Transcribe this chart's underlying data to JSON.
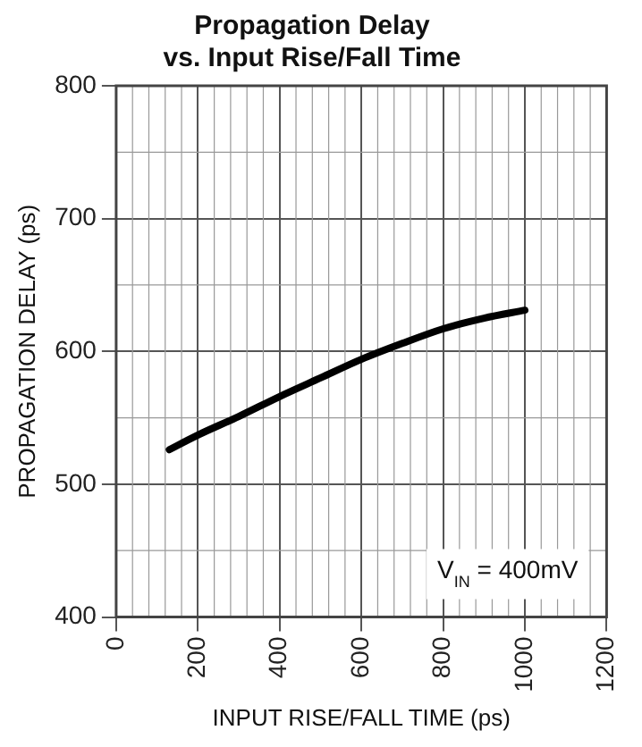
{
  "chart_data": {
    "type": "line",
    "title": "Propagation Delay\nvs. Input Rise/Fall Time",
    "xlabel": "INPUT RISE/FALL TIME (ps)",
    "ylabel": "PROPAGATION DELAY (ps)",
    "x": [
      130,
      200,
      300,
      400,
      500,
      600,
      700,
      800,
      900,
      1000
    ],
    "series": [
      {
        "color": "#000000",
        "values": [
          526,
          537,
          551,
          566,
          580,
          594,
          606,
          617,
          625,
          631
        ]
      }
    ],
    "xlim": [
      0,
      1200
    ],
    "xticks": [
      0,
      200,
      400,
      600,
      800,
      1000,
      1200
    ],
    "ylim": [
      400,
      800
    ],
    "yticks": [
      400,
      500,
      600,
      700,
      800
    ],
    "grid": true,
    "legend": false,
    "marker": "none",
    "line_style": "solid",
    "annotations": [
      "V$_{IN}$ = 400mV"
    ]
  }
}
